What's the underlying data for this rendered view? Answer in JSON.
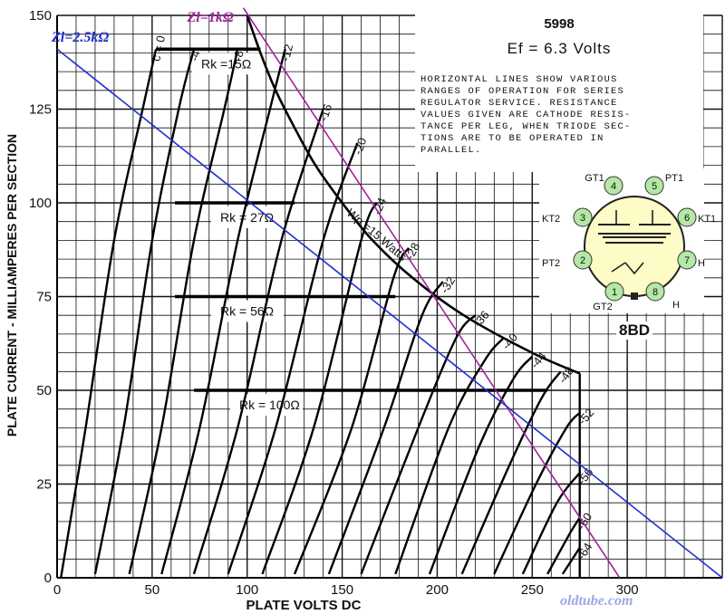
{
  "chart_data": {
    "type": "line",
    "title": "5998",
    "subtitle": "Ef = 6.3 Volts",
    "xlabel": "PLATE VOLTS DC",
    "ylabel": "PLATE CURRENT - MILLIAMPERES PER SECTION",
    "xlim": [
      0,
      350
    ],
    "ylim": [
      0,
      150
    ],
    "x_ticks": [
      "0",
      "50",
      "100",
      "150",
      "200",
      "250",
      "300"
    ],
    "y_ticks": [
      "0",
      "25",
      "50",
      "75",
      "100",
      "125",
      "150"
    ],
    "grid": true,
    "grid_step": {
      "x": 10,
      "y": 5
    },
    "plate_limits": {
      "max_volts": 275,
      "dissipation_watts": 15
    },
    "series": [
      {
        "name": "c = 0",
        "label": "c = 0",
        "points": [
          [
            2,
            0
          ],
          [
            15,
            40
          ],
          [
            30,
            90
          ],
          [
            45,
            125
          ],
          [
            52,
            141
          ]
        ]
      },
      {
        "name": "-4",
        "label": "-4",
        "points": [
          [
            20,
            1
          ],
          [
            35,
            40
          ],
          [
            50,
            90
          ],
          [
            64,
            125
          ],
          [
            72,
            141
          ]
        ]
      },
      {
        "name": "-8",
        "label": "-8",
        "points": [
          [
            38,
            1
          ],
          [
            55,
            40
          ],
          [
            72,
            90
          ],
          [
            88,
            125
          ],
          [
            95,
            141
          ]
        ]
      },
      {
        "name": "-12",
        "label": "-12",
        "points": [
          [
            55,
            1
          ],
          [
            75,
            40
          ],
          [
            95,
            90
          ],
          [
            112,
            125
          ],
          [
            120,
            141
          ]
        ]
      },
      {
        "name": "-16",
        "label": "-16",
        "points": [
          [
            72,
            1
          ],
          [
            95,
            40
          ],
          [
            118,
            90
          ],
          [
            140,
            125
          ]
        ]
      },
      {
        "name": "-20",
        "label": "-20",
        "points": [
          [
            90,
            1
          ],
          [
            115,
            40
          ],
          [
            140,
            90
          ],
          [
            158,
            116
          ]
        ]
      },
      {
        "name": "-24",
        "label": "-24",
        "points": [
          [
            108,
            1
          ],
          [
            135,
            40
          ],
          [
            160,
            90
          ],
          [
            168,
            100
          ]
        ]
      },
      {
        "name": "-28",
        "label": "-28",
        "points": [
          [
            125,
            1
          ],
          [
            155,
            40
          ],
          [
            177,
            80
          ],
          [
            185,
            88
          ]
        ]
      },
      {
        "name": "-32",
        "label": "-32",
        "points": [
          [
            143,
            1
          ],
          [
            172,
            40
          ],
          [
            192,
            70
          ],
          [
            203,
            79
          ]
        ]
      },
      {
        "name": "-36",
        "label": "-36",
        "points": [
          [
            160,
            1
          ],
          [
            190,
            40
          ],
          [
            210,
            64
          ],
          [
            220,
            70
          ]
        ]
      },
      {
        "name": "-40",
        "label": "-40",
        "points": [
          [
            178,
            1
          ],
          [
            206,
            40
          ],
          [
            225,
            58
          ],
          [
            235,
            64
          ]
        ]
      },
      {
        "name": "-44",
        "label": "-44",
        "points": [
          [
            196,
            1
          ],
          [
            222,
            35
          ],
          [
            240,
            53
          ],
          [
            250,
            59
          ]
        ]
      },
      {
        "name": "-48",
        "label": "-48",
        "points": [
          [
            213,
            1
          ],
          [
            238,
            30
          ],
          [
            255,
            48
          ],
          [
            265,
            55
          ]
        ]
      },
      {
        "name": "-52",
        "label": "-52",
        "points": [
          [
            230,
            1
          ],
          [
            252,
            25
          ],
          [
            268,
            40
          ],
          [
            275,
            44
          ]
        ]
      },
      {
        "name": "-56",
        "label": "-56",
        "points": [
          [
            245,
            1
          ],
          [
            263,
            20
          ],
          [
            275,
            28
          ]
        ]
      },
      {
        "name": "-60",
        "label": "-60",
        "points": [
          [
            258,
            1
          ],
          [
            270,
            12
          ],
          [
            275,
            16
          ]
        ]
      },
      {
        "name": "-64",
        "label": "-64",
        "points": [
          [
            266,
            1
          ],
          [
            275,
            8
          ]
        ]
      }
    ],
    "max_dissipation_curve": {
      "label": "Wp =15 Watts",
      "points": [
        [
          100,
          150
        ],
        [
          107,
          140
        ],
        [
          115,
          130
        ],
        [
          125,
          120
        ],
        [
          136,
          110
        ],
        [
          150,
          100
        ],
        [
          166,
          90
        ],
        [
          187,
          80
        ],
        [
          214,
          70
        ],
        [
          250,
          60
        ],
        [
          275,
          54.5
        ]
      ]
    },
    "operating_ranges": [
      {
        "label": "Rk =15Ω",
        "y": 141,
        "x_start": 52,
        "x_end": 107
      },
      {
        "label": "Rk = 27Ω",
        "y": 100,
        "x_start": 62,
        "x_end": 125
      },
      {
        "label": "Rk = 56Ω",
        "y": 75,
        "x_start": 62,
        "x_end": 178
      },
      {
        "label": "Rk = 100Ω",
        "y": 50,
        "x_start": 72,
        "x_end": 258
      }
    ],
    "load_lines": [
      {
        "label": "Zl=1kΩ",
        "color": "#a020a0",
        "points": [
          [
            98,
            152
          ],
          [
            296,
            0
          ]
        ]
      },
      {
        "label": "Zl=2.5kΩ",
        "color": "#1f2fd0",
        "points": [
          [
            0,
            141
          ],
          [
            350,
            0
          ]
        ]
      }
    ]
  },
  "info": {
    "tube_type": "5998",
    "ef": "Ef = 6.3 Volts",
    "note": "HORIZONTAL LINES SHOW VARIOUS\nRANGES OF OPERATION FOR SERIES\nREGULATOR SERVICE. RESISTANCE\nVALUES GIVEN ARE CATHODE RESIS-\nTANCE PER LEG, WHEN TRIODE SEC-\nTIONS ARE TO BE OPERATED IN\nPARALLEL."
  },
  "socket": {
    "label": "8BD",
    "pins": [
      {
        "num": "1",
        "name": "GT2"
      },
      {
        "num": "2",
        "name": "PT2"
      },
      {
        "num": "3",
        "name": "KT2"
      },
      {
        "num": "4",
        "name": "GT1"
      },
      {
        "num": "5",
        "name": "PT1"
      },
      {
        "num": "6",
        "name": "KT1"
      },
      {
        "num": "7",
        "name": "H"
      },
      {
        "num": "8",
        "name": "H"
      }
    ],
    "pin_color": "#b5e8a6",
    "body_color": "#fdfbc6"
  },
  "watermark": "oldtube.com",
  "colors": {
    "curve": "#000000",
    "grid": "#111111",
    "load_1k": "#a020a0",
    "load_2k5": "#1f2fd0"
  }
}
